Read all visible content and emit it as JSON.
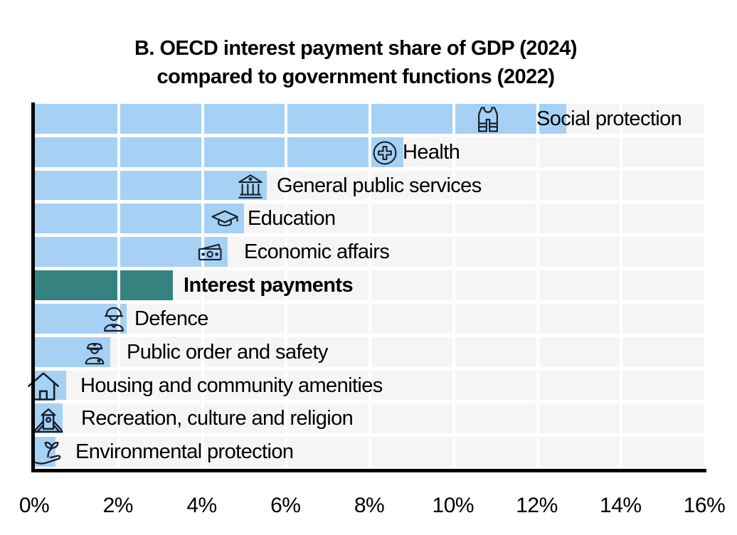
{
  "title": {
    "line1": "B. OECD interest payment share of GDP (2024)",
    "line2": "compared to government functions (2022)"
  },
  "chart_data": {
    "type": "bar",
    "orientation": "horizontal",
    "title": "B. OECD interest payment share of GDP (2024) compared to government functions (2022)",
    "xlabel": "",
    "ylabel": "",
    "unit": "% of GDP",
    "xlim": [
      0,
      16
    ],
    "x_ticks": [
      0,
      2,
      4,
      6,
      8,
      10,
      12,
      14,
      16
    ],
    "x_tick_labels": [
      "0%",
      "2%",
      "4%",
      "6%",
      "8%",
      "10%",
      "12%",
      "14%",
      "16%"
    ],
    "grid": "vertical white gridlines on light gray row bands",
    "legend": "none",
    "categories": [
      "Social protection",
      "Health",
      "General public services",
      "Education",
      "Economic affairs",
      "Interest payments",
      "Defence",
      "Public order and safety",
      "Housing and community amenities",
      "Recreation, culture and religion",
      "Environmental protection"
    ],
    "values": [
      12.7,
      8.8,
      5.55,
      5.0,
      4.6,
      3.3,
      2.2,
      1.8,
      0.75,
      0.66,
      0.5
    ],
    "highlight_index": 5,
    "highlight_category": "Interest payments",
    "icons": [
      "life-vest",
      "medical-cross-circle",
      "government-building",
      "graduation-cap",
      "banknote",
      null,
      "soldier",
      "police-officer",
      "house",
      "playground-tower",
      "hand-with-plant"
    ],
    "colors": {
      "bar": "#A6D1F5",
      "highlight_bar": "#36827E",
      "row_background": "#F5F5F5",
      "gridline": "#FFFFFF",
      "axis": "#000000",
      "text": "#000000"
    }
  }
}
